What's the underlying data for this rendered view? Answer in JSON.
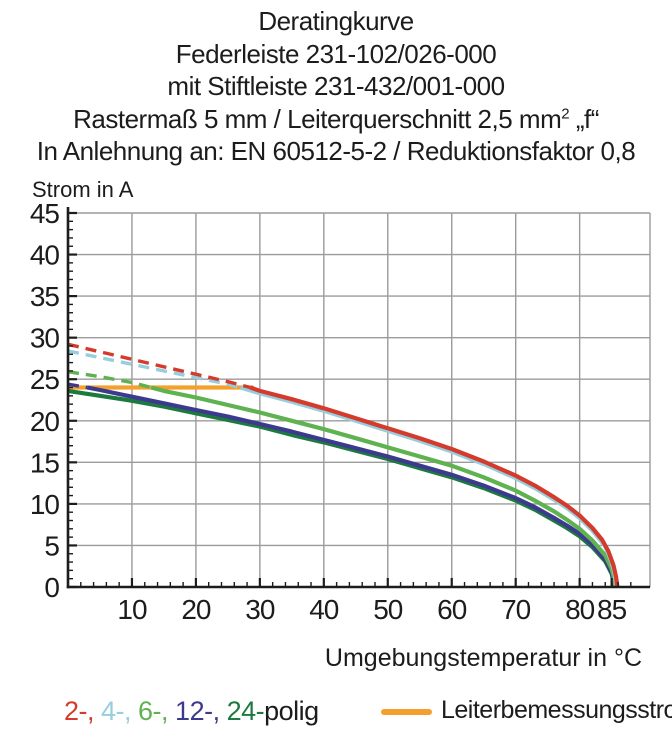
{
  "title": {
    "line1": "Deratingkurve",
    "line2": "Federleiste 231-102/026-000",
    "line3": "mit Stiftleiste 231-432/001-000",
    "line4_pre": "Rastermaß 5 mm / Leiterquerschnitt 2,5 mm",
    "line4_sup": "2",
    "line4_post": " „f“",
    "line5": "In Anlehnung an: EN 60512-5-2 / Reduktionsfaktor 0,8"
  },
  "axes": {
    "y_label": "Strom in A",
    "x_label": "Umgebungstemperatur in °C",
    "x_ticks_major": [
      10,
      20,
      30,
      40,
      50,
      60,
      70,
      80,
      85
    ],
    "y_ticks_major": [
      0,
      5,
      10,
      15,
      20,
      25,
      30,
      35,
      40,
      45
    ],
    "x_minor_step": 2,
    "y_minor_step": 1,
    "x_range": [
      0,
      91
    ],
    "y_range": [
      0,
      45
    ],
    "grid_color": "#9b9b9b",
    "axis_color": "#1c1c1c"
  },
  "chart_data": {
    "type": "line",
    "title": "Deratingkurve",
    "xlabel": "Umgebungstemperatur in °C",
    "ylabel": "Strom in A",
    "xlim": [
      0,
      91
    ],
    "ylim": [
      0,
      45
    ],
    "grid": true,
    "note": "dash_until = temperature up to which the curve is drawn dashed (portion above the 24 A conductor rated current)",
    "series": [
      {
        "name": "2-polig",
        "color": "#d43b2c",
        "dash_until": 28.5,
        "points": [
          [
            0,
            29.2
          ],
          [
            5,
            28.3
          ],
          [
            10,
            27.4
          ],
          [
            15,
            26.5
          ],
          [
            20,
            25.6
          ],
          [
            25,
            24.7
          ],
          [
            28.5,
            24.0
          ],
          [
            30,
            23.6
          ],
          [
            35,
            22.6
          ],
          [
            40,
            21.5
          ],
          [
            45,
            20.3
          ],
          [
            50,
            19.1
          ],
          [
            55,
            17.9
          ],
          [
            60,
            16.6
          ],
          [
            65,
            15.1
          ],
          [
            70,
            13.4
          ],
          [
            73,
            12.2
          ],
          [
            76,
            10.8
          ],
          [
            78,
            9.8
          ],
          [
            80,
            8.6
          ],
          [
            82,
            7.1
          ],
          [
            83.5,
            5.7
          ],
          [
            84.5,
            4.3
          ],
          [
            85.3,
            2.6
          ],
          [
            85.7,
            1.2
          ],
          [
            85.9,
            0
          ]
        ]
      },
      {
        "name": "4-polig",
        "color": "#97cedd",
        "dash_until": 27,
        "points": [
          [
            0,
            28.4
          ],
          [
            5,
            27.6
          ],
          [
            10,
            26.8
          ],
          [
            15,
            26.0
          ],
          [
            20,
            25.2
          ],
          [
            25,
            24.4
          ],
          [
            27,
            24.0
          ],
          [
            30,
            23.3
          ],
          [
            35,
            22.3
          ],
          [
            40,
            21.2
          ],
          [
            45,
            20.0
          ],
          [
            50,
            18.8
          ],
          [
            55,
            17.6
          ],
          [
            60,
            16.3
          ],
          [
            65,
            14.8
          ],
          [
            70,
            13.1
          ],
          [
            73,
            11.9
          ],
          [
            76,
            10.5
          ],
          [
            78,
            9.5
          ],
          [
            80,
            8.3
          ],
          [
            82,
            6.8
          ],
          [
            84,
            4.9
          ],
          [
            85,
            3.0
          ],
          [
            85.5,
            1.5
          ],
          [
            85.8,
            0
          ]
        ]
      },
      {
        "name": "6-polig",
        "color": "#5eb250",
        "dash_until": 13,
        "points": [
          [
            0,
            25.9
          ],
          [
            5,
            25.3
          ],
          [
            10,
            24.6
          ],
          [
            13,
            24.0
          ],
          [
            15,
            23.6
          ],
          [
            20,
            22.8
          ],
          [
            25,
            21.9
          ],
          [
            30,
            21.0
          ],
          [
            35,
            20.0
          ],
          [
            40,
            19.0
          ],
          [
            45,
            17.9
          ],
          [
            50,
            16.8
          ],
          [
            55,
            15.7
          ],
          [
            60,
            14.6
          ],
          [
            65,
            13.2
          ],
          [
            70,
            11.6
          ],
          [
            73,
            10.4
          ],
          [
            76,
            9.1
          ],
          [
            78,
            8.1
          ],
          [
            80,
            7.0
          ],
          [
            82,
            5.6
          ],
          [
            84,
            3.8
          ],
          [
            85,
            2.2
          ],
          [
            85.4,
            1.0
          ],
          [
            85.6,
            0
          ]
        ]
      },
      {
        "name": "12-polig",
        "color": "#3c3a8e",
        "dash_until": 3,
        "points": [
          [
            0,
            24.4
          ],
          [
            3,
            24.0
          ],
          [
            5,
            23.7
          ],
          [
            10,
            22.9
          ],
          [
            15,
            22.1
          ],
          [
            20,
            21.3
          ],
          [
            25,
            20.5
          ],
          [
            30,
            19.6
          ],
          [
            35,
            18.7
          ],
          [
            40,
            17.7
          ],
          [
            45,
            16.7
          ],
          [
            50,
            15.7
          ],
          [
            55,
            14.6
          ],
          [
            60,
            13.5
          ],
          [
            65,
            12.2
          ],
          [
            70,
            10.7
          ],
          [
            73,
            9.6
          ],
          [
            76,
            8.3
          ],
          [
            78,
            7.4
          ],
          [
            80,
            6.4
          ],
          [
            82,
            5.1
          ],
          [
            84,
            3.3
          ],
          [
            85,
            1.8
          ],
          [
            85.3,
            0.8
          ],
          [
            85.5,
            0
          ]
        ]
      },
      {
        "name": "24-polig",
        "color": "#1d7a3f",
        "dash_until": null,
        "points": [
          [
            0,
            23.6
          ],
          [
            5,
            23.0
          ],
          [
            10,
            22.4
          ],
          [
            15,
            21.7
          ],
          [
            20,
            20.9
          ],
          [
            25,
            20.1
          ],
          [
            30,
            19.3
          ],
          [
            35,
            18.3
          ],
          [
            40,
            17.4
          ],
          [
            45,
            16.4
          ],
          [
            50,
            15.4
          ],
          [
            55,
            14.3
          ],
          [
            60,
            13.2
          ],
          [
            65,
            11.9
          ],
          [
            70,
            10.4
          ],
          [
            73,
            9.3
          ],
          [
            76,
            8.0
          ],
          [
            78,
            7.1
          ],
          [
            80,
            6.1
          ],
          [
            82,
            4.8
          ],
          [
            84,
            3.1
          ],
          [
            85,
            1.6
          ],
          [
            85.3,
            0.7
          ],
          [
            85.5,
            0
          ]
        ]
      },
      {
        "name": "Leiterbemessungsstrom",
        "color": "#f5a02d",
        "dash_until": null,
        "points": [
          [
            0,
            24
          ],
          [
            29,
            24
          ]
        ]
      }
    ]
  },
  "legend": {
    "pole_items": [
      {
        "label": "2-,",
        "color": "#d43b2c"
      },
      {
        "label": "4-,",
        "color": "#97cedd"
      },
      {
        "label": "6-,",
        "color": "#5eb250"
      },
      {
        "label": "12-,",
        "color": "#3c3a8e"
      },
      {
        "label": "24-",
        "color": "#1d7a3f"
      }
    ],
    "suffix": "polig",
    "rated_label": "Leiterbemessungsstrom",
    "rated_color": "#f5a02d"
  }
}
